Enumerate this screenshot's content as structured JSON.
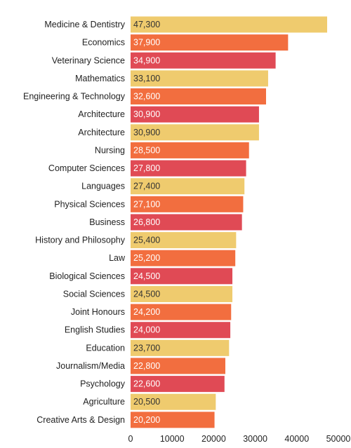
{
  "chart_data": {
    "type": "bar",
    "orientation": "horizontal",
    "title": "",
    "xlabel": "",
    "ylabel": "",
    "xlim": [
      0,
      50000
    ],
    "grid": false,
    "legend": "none",
    "x_ticks": [
      "0",
      "10000",
      "20000",
      "30000",
      "40000",
      "50000"
    ],
    "bars": [
      {
        "category": "Medicine & Dentistry",
        "value": 47300,
        "label": "47,300",
        "color": "#EFCB6E"
      },
      {
        "category": "Economics",
        "value": 37900,
        "label": "37,900",
        "color": "#F26E3F"
      },
      {
        "category": "Veterinary Science",
        "value": 34900,
        "label": "34,900",
        "color": "#E04A55"
      },
      {
        "category": "Mathematics",
        "value": 33100,
        "label": "33,100",
        "color": "#EFCB6E"
      },
      {
        "category": "Engineering & Technology",
        "value": 32600,
        "label": "32,600",
        "color": "#F26E3F"
      },
      {
        "category": "Architecture",
        "value": 30900,
        "label": "30,900",
        "color": "#E04A55"
      },
      {
        "category": "Architecture",
        "value": 30900,
        "label": "30,900",
        "color": "#EFCB6E"
      },
      {
        "category": "Nursing",
        "value": 28500,
        "label": "28,500",
        "color": "#F26E3F"
      },
      {
        "category": "Computer Sciences",
        "value": 27800,
        "label": "27,800",
        "color": "#E04A55"
      },
      {
        "category": "Languages",
        "value": 27400,
        "label": "27,400",
        "color": "#EFCB6E"
      },
      {
        "category": "Physical Sciences",
        "value": 27100,
        "label": "27,100",
        "color": "#F26E3F"
      },
      {
        "category": "Business",
        "value": 26800,
        "label": "26,800",
        "color": "#E04A55"
      },
      {
        "category": "History and Philosophy",
        "value": 25400,
        "label": "25,400",
        "color": "#EFCB6E"
      },
      {
        "category": "Law",
        "value": 25200,
        "label": "25,200",
        "color": "#F26E3F"
      },
      {
        "category": "Biological Sciences",
        "value": 24500,
        "label": "24,500",
        "color": "#E04A55"
      },
      {
        "category": "Social Sciences",
        "value": 24500,
        "label": "24,500",
        "color": "#EFCB6E"
      },
      {
        "category": "Joint Honours",
        "value": 24200,
        "label": "24,200",
        "color": "#F26E3F"
      },
      {
        "category": "English Studies",
        "value": 24000,
        "label": "24,000",
        "color": "#E04A55"
      },
      {
        "category": "Education",
        "value": 23700,
        "label": "23,700",
        "color": "#EFCB6E"
      },
      {
        "category": "Journalism/Media",
        "value": 22800,
        "label": "22,800",
        "color": "#F26E3F"
      },
      {
        "category": "Psychology",
        "value": 22600,
        "label": "22,600",
        "color": "#E04A55"
      },
      {
        "category": "Agriculture",
        "value": 20500,
        "label": "20,500",
        "color": "#EFCB6E"
      },
      {
        "category": "Creative Arts & Design",
        "value": 20200,
        "label": "20,200",
        "color": "#F26E3F"
      }
    ],
    "label_text_colors": {
      "#EFCB6E": "#333333",
      "#F26E3F": "#ffffff",
      "#E04A55": "#ffffff"
    }
  }
}
